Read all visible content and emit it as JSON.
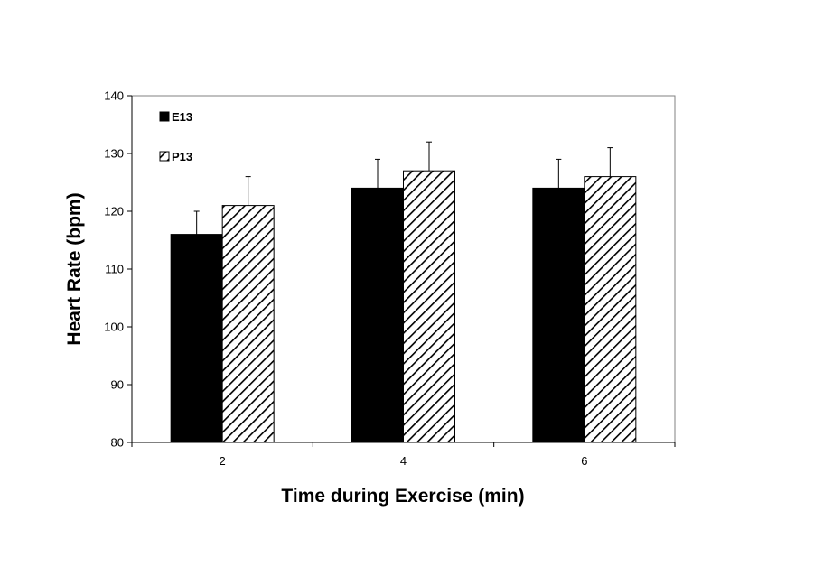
{
  "chart_data": {
    "type": "bar",
    "title": "",
    "xlabel": "Time during Exercise (min)",
    "ylabel": "Heart Rate (bpm)",
    "categories": [
      "2",
      "4",
      "6"
    ],
    "ylim": [
      80,
      140
    ],
    "yticks": [
      80,
      90,
      100,
      110,
      120,
      130,
      140
    ],
    "grid": false,
    "legend_position": "top-left",
    "series": [
      {
        "name": "E13",
        "values": [
          116,
          124,
          124
        ],
        "errors": [
          4,
          5,
          5
        ],
        "fill": "solid",
        "color": "#000000"
      },
      {
        "name": "P13",
        "values": [
          121,
          127,
          126
        ],
        "errors": [
          5,
          5,
          5
        ],
        "fill": "diagonal-hatch",
        "color": "#000000"
      }
    ]
  }
}
